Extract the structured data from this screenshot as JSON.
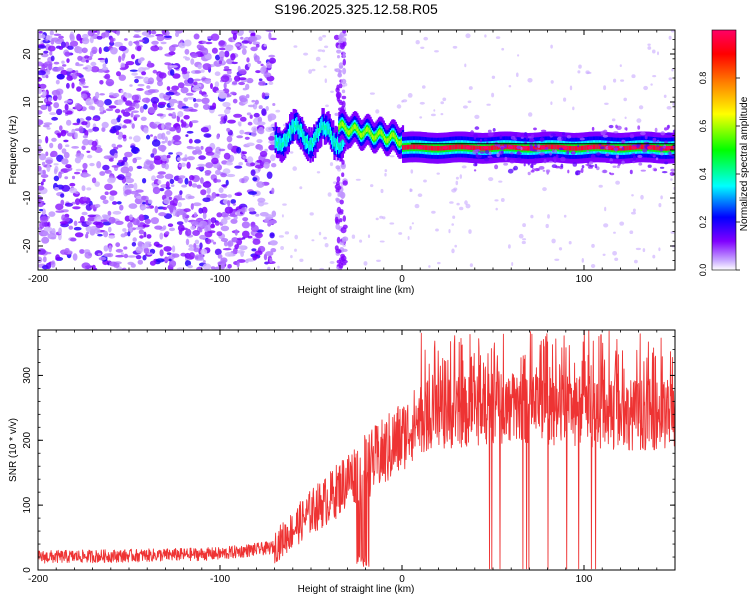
{
  "title": "S196.2025.325.12.58.R05",
  "chart_data": [
    {
      "type": "heatmap",
      "title": "S196.2025.325.12.58.R05",
      "xlabel": "Height of straight line (km)",
      "ylabel": "Frequency (Hz)",
      "xlim": [
        -200,
        150
      ],
      "ylim": [
        -25,
        25
      ],
      "xticks": [
        -200,
        -100,
        0,
        100
      ],
      "yticks": [
        -20,
        -10,
        0,
        10,
        20
      ],
      "colorbar": {
        "label": "Normalized spectral amplitude",
        "range": [
          0,
          1
        ],
        "ticks": [
          "0.0",
          "0.2",
          "0.4",
          "0.6",
          "0.8"
        ],
        "colors": [
          "#ffffff",
          "#8000ff",
          "#0000ff",
          "#00ffff",
          "#00ff00",
          "#ffff00",
          "#ff8000",
          "#ff0000",
          "#ff0066"
        ]
      },
      "regions": [
        {
          "x_from": -200,
          "x_to": -70,
          "pattern": "broadband noise",
          "level": 0.15
        },
        {
          "x_from": -70,
          "x_to": -30,
          "freq_hz": 3,
          "level": 0.4
        },
        {
          "x_from": -35,
          "x_to": 0,
          "freq_hz": 2,
          "level": 0.6
        },
        {
          "x_from": 0,
          "x_to": 150,
          "freq_hz": 0.5,
          "level": 0.95
        }
      ]
    },
    {
      "type": "line",
      "xlabel": "Height of straight line (km)",
      "ylabel": "SNR (10 * v/v)",
      "xlim": [
        -200,
        150
      ],
      "ylim": [
        0,
        370
      ],
      "xticks": [
        -200,
        -100,
        0,
        100
      ],
      "yticks": [
        0,
        100,
        200,
        300
      ],
      "color": "#ee3333",
      "series_profile": [
        {
          "x": -200,
          "y": 20
        },
        {
          "x": -150,
          "y": 22
        },
        {
          "x": -100,
          "y": 25
        },
        {
          "x": -70,
          "y": 35
        },
        {
          "x": -50,
          "y": 90
        },
        {
          "x": -40,
          "y": 110
        },
        {
          "x": -30,
          "y": 140
        },
        {
          "x": -20,
          "y": 160
        },
        {
          "x": -10,
          "y": 180
        },
        {
          "x": 0,
          "y": 205
        },
        {
          "x": 10,
          "y": 235
        },
        {
          "x": 20,
          "y": 240
        },
        {
          "x": 40,
          "y": 245
        },
        {
          "x": 60,
          "y": 250
        },
        {
          "x": 80,
          "y": 248
        },
        {
          "x": 100,
          "y": 245
        },
        {
          "x": 120,
          "y": 240
        },
        {
          "x": 150,
          "y": 240
        }
      ],
      "dropout_region_x": [
        48,
        115
      ]
    }
  ]
}
